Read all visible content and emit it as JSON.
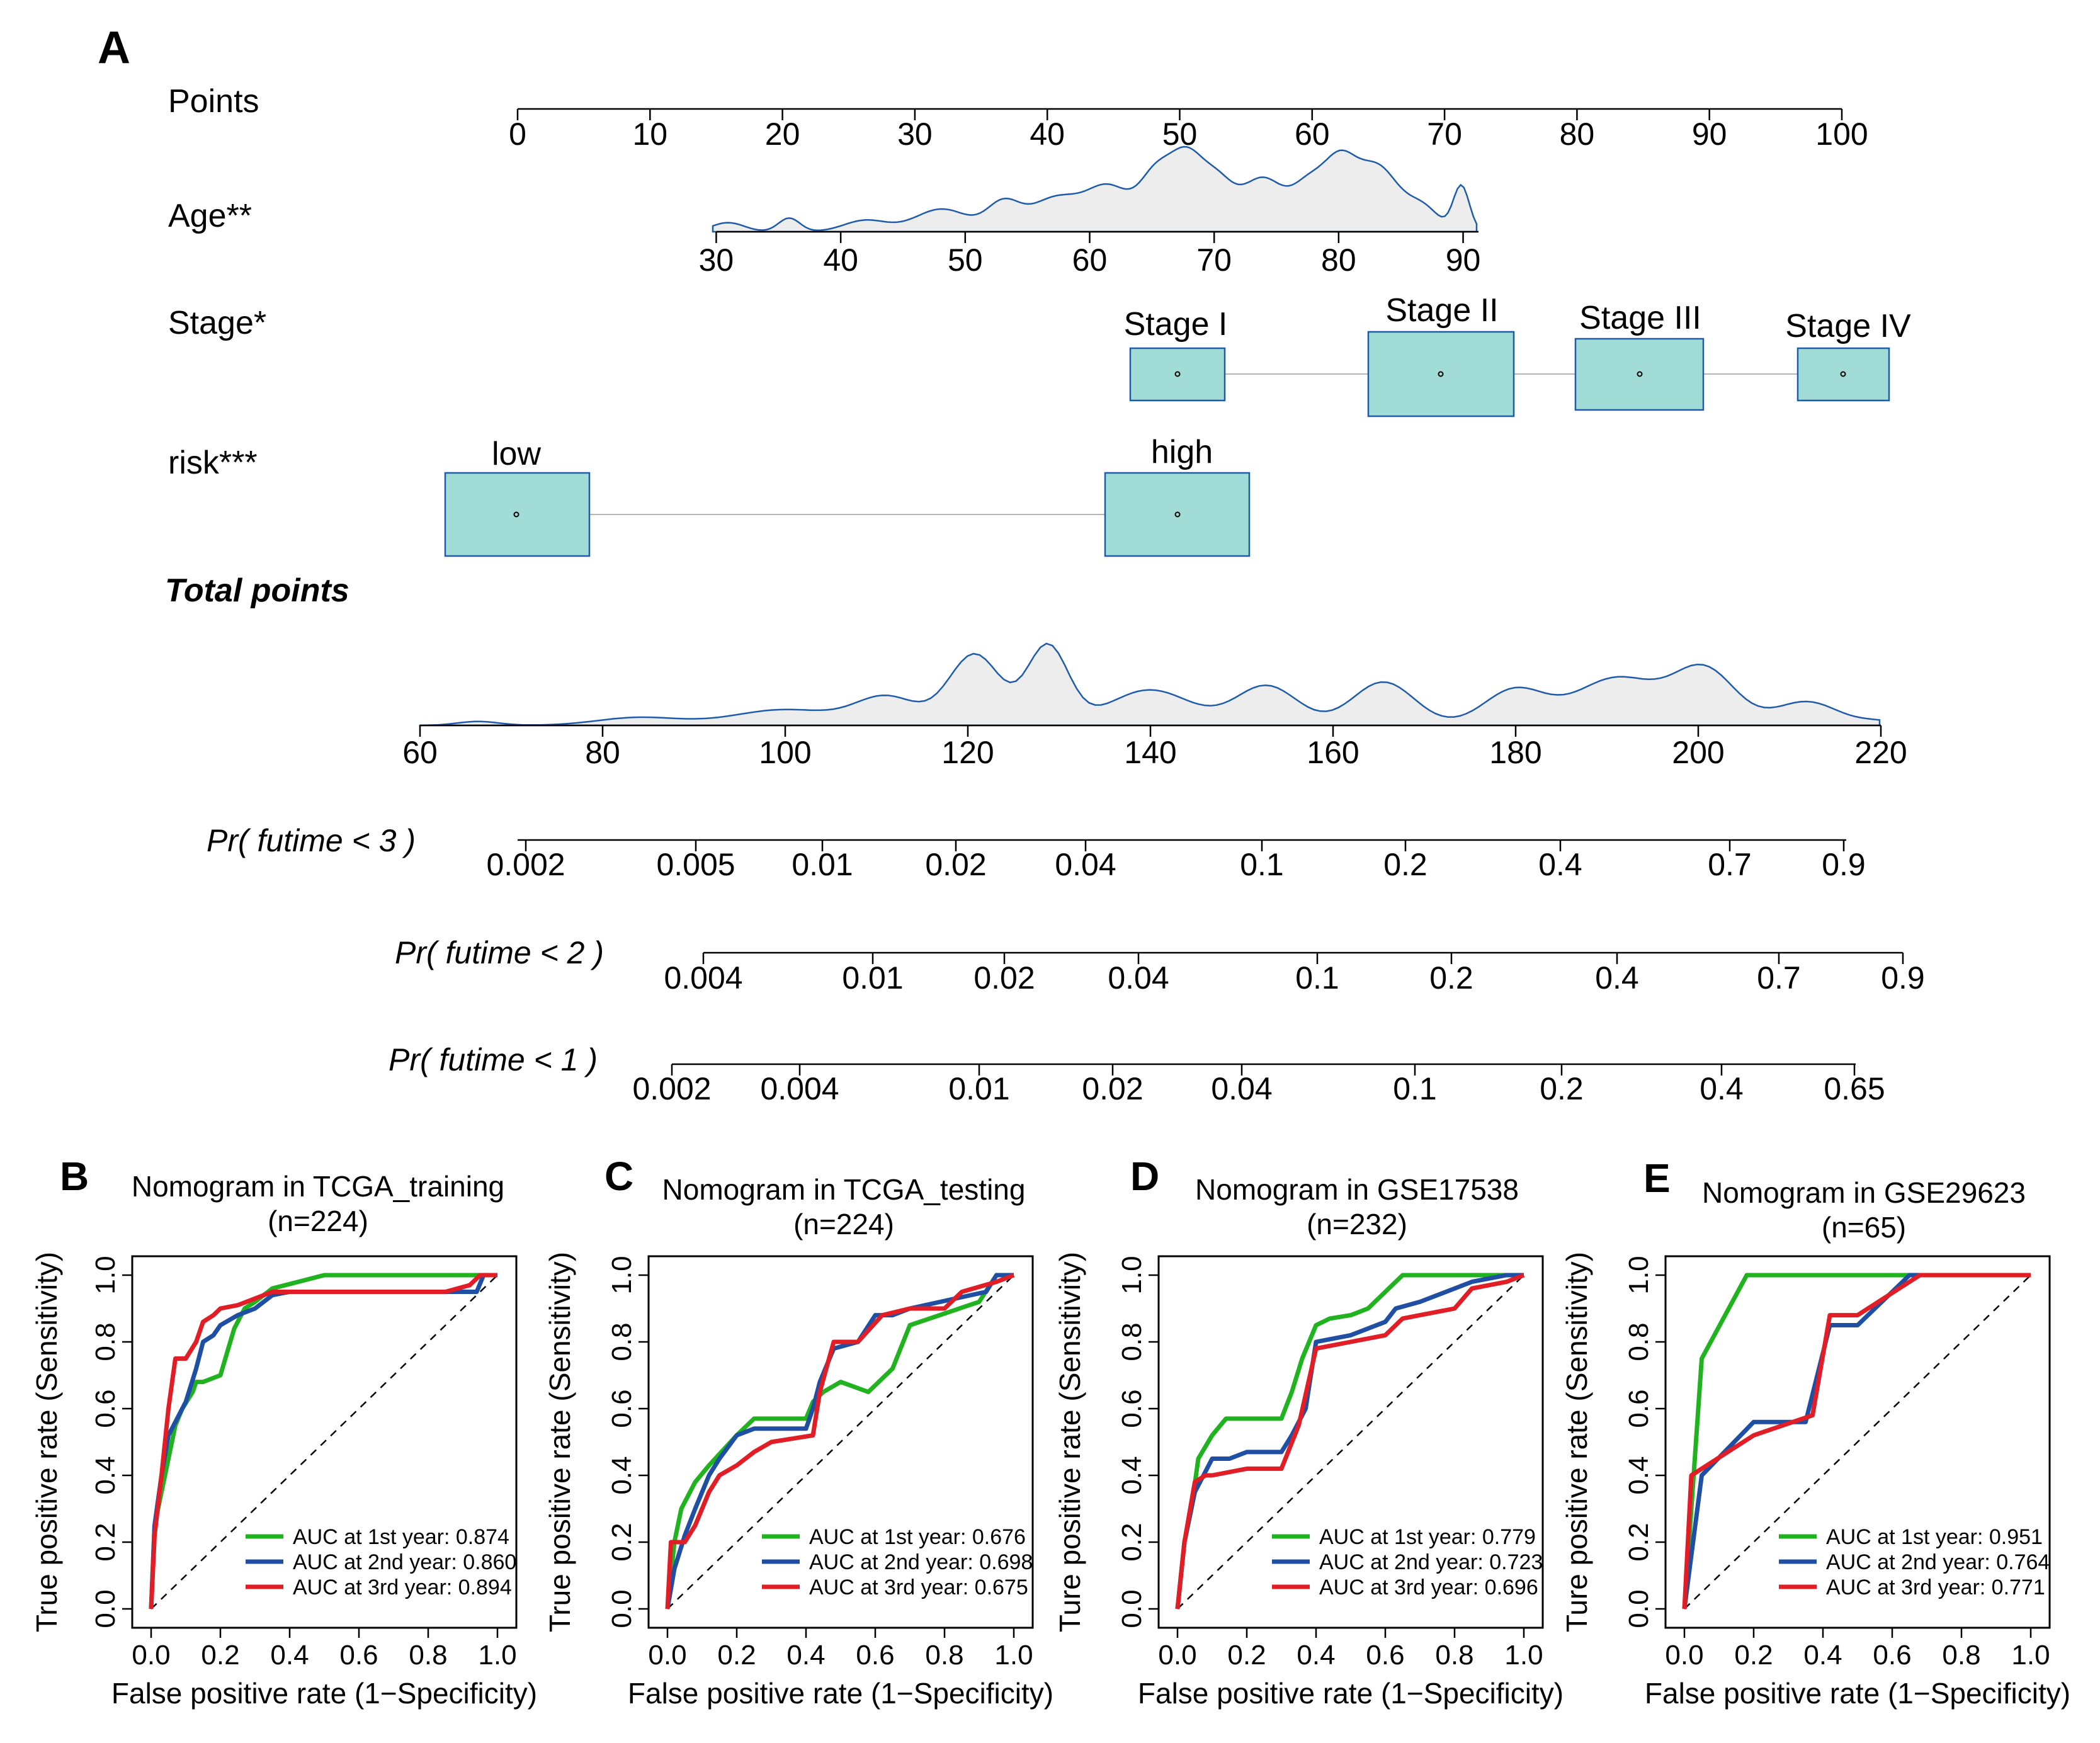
{
  "nomogram": {
    "panel_label": "A",
    "rows": [
      {
        "label": "Points",
        "ticks": [
          "0",
          "10",
          "20",
          "30",
          "40",
          "50",
          "60",
          "70",
          "80",
          "90",
          "100"
        ]
      },
      {
        "label": "Age**",
        "ticks": [
          "30",
          "40",
          "50",
          "60",
          "70",
          "80",
          "90"
        ]
      },
      {
        "label": "Stage*",
        "categories": [
          "Stage I",
          "Stage II",
          "Stage III",
          "Stage IV"
        ]
      },
      {
        "label": "risk***",
        "categories": [
          "low",
          "high"
        ]
      },
      {
        "label": "Total points",
        "ticks": [
          "60",
          "80",
          "100",
          "120",
          "140",
          "160",
          "180",
          "200",
          "220"
        ]
      },
      {
        "label": "Pr( futime < 3 )",
        "ticks": [
          "0.002",
          "0.005",
          "0.01",
          "0.02",
          "0.04",
          "0.1",
          "0.2",
          "0.4",
          "0.7",
          "0.9"
        ]
      },
      {
        "label": "Pr( futime < 2 )",
        "ticks": [
          "0.004",
          "0.01",
          "0.02",
          "0.04",
          "0.1",
          "0.2",
          "0.4",
          "0.7",
          "0.9"
        ]
      },
      {
        "label": "Pr( futime < 1 )",
        "ticks": [
          "0.002",
          "0.004",
          "0.01",
          "0.02",
          "0.04",
          "0.1",
          "0.2",
          "0.4",
          "0.65"
        ]
      }
    ],
    "age_points": {
      "ages": [
        30,
        40,
        50,
        60,
        70,
        80,
        90
      ],
      "points": [
        15,
        24.4,
        33.8,
        43.2,
        52.6,
        62,
        71.4
      ]
    },
    "stage_points": [
      50,
      70,
      85,
      100
    ],
    "risk_points": [
      0,
      50
    ],
    "total_range": [
      60,
      220
    ]
  },
  "chart_data": [
    {
      "type": "line",
      "panel_label": "B",
      "title": "Nomogram in TCGA_training",
      "subtitle": "(n=224)",
      "xlabel": "False positive rate (1−Specificity)",
      "ylabel": "True positive rate (Sensitivity)",
      "xlim": [
        0,
        1
      ],
      "ylim": [
        0,
        1
      ],
      "ticks": [
        "0.0",
        "0.2",
        "0.4",
        "0.6",
        "0.8",
        "1.0"
      ],
      "series": [
        {
          "name": "AUC at 1st year: 0.874",
          "color": "#21b21f",
          "x": [
            0,
            0.01,
            0.03,
            0.05,
            0.07,
            0.09,
            0.12,
            0.13,
            0.15,
            0.2,
            0.24,
            0.27,
            0.3,
            0.35,
            0.5,
            0.6,
            0.9,
            0.95,
            1.0
          ],
          "y": [
            0,
            0.25,
            0.35,
            0.45,
            0.55,
            0.6,
            0.65,
            0.68,
            0.68,
            0.7,
            0.84,
            0.9,
            0.92,
            0.96,
            1.0,
            1.0,
            1.0,
            1.0,
            1.0
          ]
        },
        {
          "name": "AUC at 2nd year: 0.860",
          "color": "#1f4fa3",
          "x": [
            0,
            0.01,
            0.03,
            0.05,
            0.08,
            0.1,
            0.13,
            0.15,
            0.18,
            0.2,
            0.25,
            0.3,
            0.35,
            0.4,
            0.6,
            0.92,
            0.94,
            0.96,
            1.0
          ],
          "y": [
            0,
            0.25,
            0.4,
            0.52,
            0.58,
            0.62,
            0.72,
            0.8,
            0.82,
            0.85,
            0.88,
            0.9,
            0.94,
            0.95,
            0.95,
            0.95,
            0.95,
            1.0,
            1.0
          ]
        },
        {
          "name": "AUC at 3rd year: 0.894",
          "color": "#e11d26",
          "x": [
            0,
            0.01,
            0.03,
            0.05,
            0.07,
            0.1,
            0.13,
            0.15,
            0.18,
            0.2,
            0.25,
            0.35,
            0.5,
            0.85,
            0.92,
            0.95,
            1.0
          ],
          "y": [
            0,
            0.22,
            0.4,
            0.6,
            0.75,
            0.75,
            0.8,
            0.86,
            0.88,
            0.9,
            0.91,
            0.95,
            0.95,
            0.95,
            0.97,
            1.0,
            1.0
          ]
        }
      ]
    },
    {
      "type": "line",
      "panel_label": "C",
      "title": "Nomogram in TCGA_testing",
      "subtitle": "(n=224)",
      "xlabel": "False positive rate (1−Specificity)",
      "ylabel": "True positive rate (Sensitivity)",
      "xlim": [
        0,
        1
      ],
      "ylim": [
        0,
        1
      ],
      "ticks": [
        "0.0",
        "0.2",
        "0.4",
        "0.6",
        "0.8",
        "1.0"
      ],
      "series": [
        {
          "name": "AUC at 1st year: 0.676",
          "color": "#21b21f",
          "x": [
            0,
            0.02,
            0.04,
            0.08,
            0.12,
            0.2,
            0.25,
            0.4,
            0.42,
            0.45,
            0.5,
            0.58,
            0.65,
            0.7,
            0.9,
            0.95,
            1.0
          ],
          "y": [
            0,
            0.2,
            0.3,
            0.38,
            0.43,
            0.52,
            0.57,
            0.57,
            0.62,
            0.65,
            0.68,
            0.65,
            0.72,
            0.85,
            0.92,
            1.0,
            1.0
          ]
        },
        {
          "name": "AUC at 2nd year: 0.698",
          "color": "#1f4fa3",
          "x": [
            0,
            0.02,
            0.05,
            0.08,
            0.12,
            0.15,
            0.2,
            0.25,
            0.4,
            0.42,
            0.44,
            0.48,
            0.55,
            0.6,
            0.65,
            0.7,
            0.92,
            0.95,
            1.0
          ],
          "y": [
            0,
            0.12,
            0.22,
            0.3,
            0.4,
            0.45,
            0.52,
            0.54,
            0.54,
            0.6,
            0.68,
            0.78,
            0.8,
            0.88,
            0.88,
            0.9,
            0.95,
            1.0,
            1.0
          ]
        },
        {
          "name": "AUC at 3rd year: 0.675",
          "color": "#e11d26",
          "x": [
            0,
            0.01,
            0.05,
            0.08,
            0.12,
            0.15,
            0.2,
            0.25,
            0.3,
            0.42,
            0.44,
            0.48,
            0.55,
            0.62,
            0.7,
            0.8,
            0.85,
            0.95,
            1.0
          ],
          "y": [
            0,
            0.2,
            0.2,
            0.25,
            0.35,
            0.4,
            0.43,
            0.47,
            0.5,
            0.52,
            0.65,
            0.8,
            0.8,
            0.88,
            0.9,
            0.9,
            0.95,
            0.98,
            1.0
          ]
        }
      ]
    },
    {
      "type": "line",
      "panel_label": "D",
      "title": "Nomogram in GSE17538",
      "subtitle": "(n=232)",
      "xlabel": "False positive rate (1−Specificity)",
      "ylabel": "Ture positive rate (Sensitivity)",
      "xlim": [
        0,
        1
      ],
      "ylim": [
        0,
        1
      ],
      "ticks": [
        "0.0",
        "0.2",
        "0.4",
        "0.6",
        "0.8",
        "1.0"
      ],
      "series": [
        {
          "name": "AUC at 1st year: 0.779",
          "color": "#21b21f",
          "x": [
            0,
            0.02,
            0.04,
            0.06,
            0.1,
            0.14,
            0.2,
            0.3,
            0.33,
            0.36,
            0.4,
            0.44,
            0.5,
            0.55,
            0.6,
            0.65,
            0.7,
            0.85,
            1.0
          ],
          "y": [
            0,
            0.2,
            0.3,
            0.45,
            0.52,
            0.57,
            0.57,
            0.57,
            0.65,
            0.75,
            0.85,
            0.87,
            0.88,
            0.9,
            0.95,
            1.0,
            1.0,
            1.0,
            1.0
          ]
        },
        {
          "name": "AUC at 2nd year: 0.723",
          "color": "#1f4fa3",
          "x": [
            0,
            0.02,
            0.05,
            0.1,
            0.15,
            0.2,
            0.3,
            0.33,
            0.37,
            0.4,
            0.5,
            0.6,
            0.63,
            0.7,
            0.85,
            0.95,
            1.0
          ],
          "y": [
            0,
            0.2,
            0.35,
            0.45,
            0.45,
            0.47,
            0.47,
            0.52,
            0.6,
            0.8,
            0.82,
            0.86,
            0.9,
            0.92,
            0.98,
            1.0,
            1.0
          ]
        },
        {
          "name": "AUC at 3rd year: 0.696",
          "color": "#e11d26",
          "x": [
            0,
            0.02,
            0.05,
            0.08,
            0.1,
            0.2,
            0.3,
            0.35,
            0.4,
            0.5,
            0.6,
            0.65,
            0.7,
            0.8,
            0.85,
            0.95,
            1.0
          ],
          "y": [
            0,
            0.2,
            0.38,
            0.4,
            0.4,
            0.42,
            0.42,
            0.55,
            0.78,
            0.8,
            0.82,
            0.87,
            0.88,
            0.9,
            0.96,
            0.98,
            1.0
          ]
        }
      ]
    },
    {
      "type": "line",
      "panel_label": "E",
      "title": "Nomogram in GSE29623",
      "subtitle": "(n=65)",
      "xlabel": "False positive rate (1−Specificity)",
      "ylabel": "Ture positive rate (Sensitivity)",
      "xlim": [
        0,
        1
      ],
      "ylim": [
        0,
        1
      ],
      "ticks": [
        "0.0",
        "0.2",
        "0.4",
        "0.6",
        "0.8",
        "1.0"
      ],
      "series": [
        {
          "name": "AUC at 1st year: 0.951",
          "color": "#21b21f",
          "x": [
            0,
            0.05,
            0.18,
            1.0
          ],
          "y": [
            0,
            0.75,
            1.0,
            1.0
          ]
        },
        {
          "name": "AUC at 2nd year: 0.764",
          "color": "#1f4fa3",
          "x": [
            0,
            0.05,
            0.2,
            0.35,
            0.42,
            0.5,
            0.65,
            1.0
          ],
          "y": [
            0,
            0.4,
            0.56,
            0.56,
            0.85,
            0.85,
            1.0,
            1.0
          ]
        },
        {
          "name": "AUC at 3rd year: 0.771",
          "color": "#e11d26",
          "x": [
            0,
            0.02,
            0.2,
            0.37,
            0.42,
            0.5,
            0.68,
            1.0
          ],
          "y": [
            0,
            0.4,
            0.52,
            0.58,
            0.88,
            0.88,
            1.0,
            1.0
          ]
        }
      ]
    }
  ]
}
